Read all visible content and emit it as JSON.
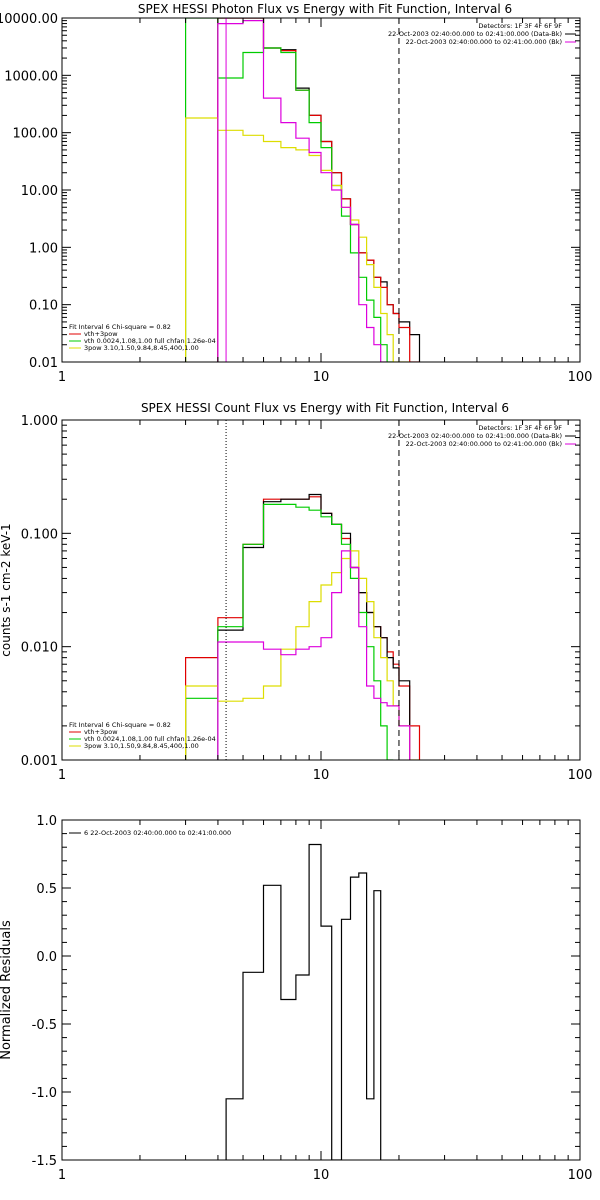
{
  "chart_data": [
    {
      "type": "line",
      "title": "SPEX HESSI Photon Flux vs Energy with Fit Function, Interval 6",
      "xscale": "log",
      "yscale": "log",
      "xlim": [
        1,
        100
      ],
      "ylim": [
        0.01,
        10000
      ],
      "x_tick_labels": [
        "1",
        "10",
        "100"
      ],
      "y_tick_labels": [
        "0.01",
        "0.10",
        "1.00",
        "10.00",
        "100.00",
        "1000.00",
        "10000.00"
      ],
      "x_edges": [
        3.0,
        4.0,
        5.0,
        6.0,
        7.0,
        8.0,
        9.0,
        10.0,
        11.0,
        12.0,
        13.0,
        14.0,
        15.0,
        16.0,
        17.0,
        18.0,
        19.0,
        20.0,
        22.0,
        24.0
      ],
      "series": [
        {
          "color": "#000000",
          "values": [
            null,
            10000,
            10000,
            3000,
            2800,
            600,
            200,
            70,
            20,
            7,
            2.5,
            0.8,
            0.6,
            0.3,
            0.25,
            0.1,
            0.07,
            0.05,
            0.03
          ]
        },
        {
          "color": "#e00000",
          "values": [
            null,
            10000,
            10000,
            3000,
            2700,
            550,
            200,
            70,
            20,
            7,
            2.5,
            0.8,
            0.6,
            0.3,
            0.2,
            0.1,
            0.07,
            0.04,
            0.01
          ]
        },
        {
          "color": "#00cc00",
          "values": [
            10000,
            900,
            2500,
            3000,
            2500,
            550,
            150,
            55,
            12,
            3.5,
            0.8,
            0.3,
            0.12,
            0.06,
            0.02,
            0.006,
            null,
            null,
            null
          ]
        },
        {
          "color": "#dddd00",
          "values": [
            180,
            110,
            90,
            70,
            55,
            50,
            40,
            22,
            12,
            5,
            3,
            1.5,
            0.5,
            0.2,
            0.07,
            0.03,
            0.01,
            0.005,
            null
          ]
        },
        {
          "color": "#dd00dd",
          "values": [
            null,
            8000,
            9000,
            400,
            150,
            80,
            45,
            20,
            10,
            5,
            2.5,
            0.1,
            0.04,
            0.02,
            0.01,
            null,
            null,
            null,
            null
          ]
        }
      ],
      "vlines": [
        {
          "x": 4.3,
          "style": "solid",
          "color": "#dd00dd"
        },
        {
          "x": 20.0,
          "style": "dashed",
          "color": "#000000"
        }
      ],
      "legend_right": [
        {
          "text": "Detectors: 1F 3F 4F 6F 9F"
        },
        {
          "text": "22-Oct-2003 02:40:00.000 to 02:41:00.000 (Data-Bk)",
          "color": "#000000"
        },
        {
          "text": "22-Oct-2003 02:40:00.000 to 02:41:00.000 (Bk)",
          "color": "#dd00dd"
        }
      ],
      "legend_left": [
        {
          "text": "Fit Interval  6    Chi-square = 0.82"
        },
        {
          "text": "vth+3pow",
          "color": "#e00000"
        },
        {
          "text": "vth 0.0024,1.08,1.00  full chfan 1.26e-04",
          "color": "#00cc00"
        },
        {
          "text": "3pow 3.10,1.50,9.84,8.45,400,1.00",
          "color": "#dddd00"
        }
      ]
    },
    {
      "type": "line",
      "title": "SPEX HESSI Count Flux vs Energy with Fit Function, Interval 6",
      "ylabel": "counts s-1 cm-2 keV-1",
      "xscale": "log",
      "yscale": "log",
      "xlim": [
        1,
        100
      ],
      "ylim": [
        0.001,
        1
      ],
      "x_tick_labels": [
        "1",
        "10",
        "100"
      ],
      "y_tick_labels": [
        "0.001",
        "0.010",
        "0.100",
        "1.000"
      ],
      "x_edges": [
        3.0,
        4.0,
        5.0,
        6.0,
        7.0,
        8.0,
        9.0,
        10.0,
        11.0,
        12.0,
        13.0,
        14.0,
        15.0,
        16.0,
        17.0,
        18.0,
        19.0,
        20.0,
        22.0,
        24.0
      ],
      "series": [
        {
          "color": "#e00000",
          "values": [
            0.008,
            0.018,
            0.08,
            0.2,
            0.2,
            0.2,
            0.21,
            0.15,
            0.12,
            0.09,
            0.05,
            0.03,
            0.02,
            0.015,
            0.012,
            0.009,
            0.007,
            0.0045,
            0.002
          ]
        },
        {
          "color": "#000000",
          "values": [
            null,
            0.014,
            0.075,
            0.19,
            0.2,
            0.2,
            0.22,
            0.15,
            0.12,
            0.1,
            0.05,
            0.03,
            0.02,
            0.015,
            0.012,
            0.008,
            0.0065,
            0.005,
            null
          ]
        },
        {
          "color": "#00cc00",
          "values": [
            0.0035,
            0.015,
            0.08,
            0.18,
            0.18,
            0.17,
            0.16,
            0.14,
            0.12,
            0.08,
            0.04,
            0.02,
            0.01,
            0.005,
            0.002,
            0.0008,
            null,
            null,
            null
          ]
        },
        {
          "color": "#dddd00",
          "values": [
            0.0045,
            0.0033,
            0.0035,
            0.0045,
            0.0095,
            0.015,
            0.025,
            0.035,
            0.045,
            0.06,
            0.07,
            0.04,
            0.025,
            0.012,
            0.008,
            0.005,
            0.003,
            0.002,
            0.001
          ]
        },
        {
          "color": "#dd00dd",
          "values": [
            null,
            0.011,
            0.011,
            0.0095,
            0.0085,
            0.0095,
            0.01,
            0.012,
            0.03,
            0.07,
            0.05,
            0.015,
            0.0045,
            0.0035,
            0.0032,
            0.003,
            0.003,
            0.002,
            null
          ]
        }
      ],
      "vlines": [
        {
          "x": 4.3,
          "style": "dotted",
          "color": "#000000"
        },
        {
          "x": 20.0,
          "style": "dashed",
          "color": "#000000"
        }
      ],
      "legend_right": [
        {
          "text": "Detectors: 1F 3F 4F 6F 9F"
        },
        {
          "text": "22-Oct-2003 02:40:00.000 to 02:41:00.000 (Data-Bk)",
          "color": "#000000"
        },
        {
          "text": "22-Oct-2003 02:40:00.000 to 02:41:00.000 (Bk)",
          "color": "#dd00dd"
        }
      ],
      "legend_left": [
        {
          "text": "Fit Interval  6    Chi-square = 0.82"
        },
        {
          "text": "vth+3pow",
          "color": "#e00000"
        },
        {
          "text": "vth 0.0024,1.08,1.00  full chfan 1.26e-04",
          "color": "#00cc00"
        },
        {
          "text": "3pow 3.10,1.50,9.84,8.45,400,1.00",
          "color": "#dddd00"
        }
      ]
    },
    {
      "type": "line",
      "ylabel": "Normalized Residuals",
      "xscale": "log",
      "yscale": "linear",
      "xlim": [
        1,
        100
      ],
      "ylim": [
        -1.5,
        1.0
      ],
      "x_tick_labels": [
        "1",
        "10",
        "100"
      ],
      "y_tick_labels": [
        "-1.5",
        "-1.0",
        "-0.5",
        "0.0",
        "0.5",
        "1.0"
      ],
      "y_tick_values": [
        -1.5,
        -1.0,
        -0.5,
        0.0,
        0.5,
        1.0
      ],
      "x_edges": [
        4.3,
        5.0,
        6.0,
        7.0,
        8.0,
        9.0,
        10.0,
        11.0,
        12.0,
        13.0,
        14.0,
        15.0,
        16.0,
        17.0,
        18.0,
        19.0,
        20.0
      ],
      "series": [
        {
          "color": "#000000",
          "values": [
            -1.05,
            -0.12,
            0.52,
            -0.32,
            -0.14,
            0.82,
            0.22,
            -1.52,
            0.27,
            0.58,
            0.61,
            -1.05,
            0.48,
            null,
            null,
            null
          ]
        }
      ],
      "legend_left": [
        {
          "text": "6  22-Oct-2003 02:40:00.000 to 02:41:00.000",
          "color": "#000000"
        }
      ]
    }
  ]
}
